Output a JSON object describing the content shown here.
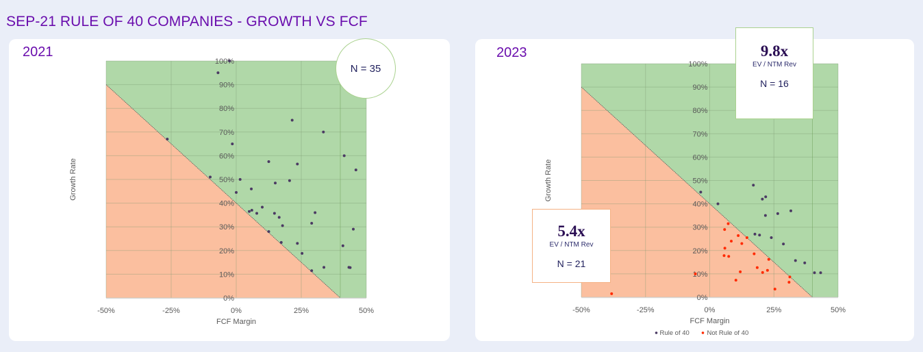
{
  "page_title": "SEP-21 RULE OF 40 COMPANIES - GROWTH VS FCF",
  "colors": {
    "title": "#6a0dad",
    "rule40_region": "#b0d8a8",
    "not_rule40_region": "#fbbf9f",
    "rule40_point": "#4b3a63",
    "not_rule40_point": "#ff2a00"
  },
  "chart_data": [
    {
      "type": "scatter",
      "title": "2021",
      "xlabel": "FCF Margin",
      "ylabel": "Growth Rate",
      "xlim": [
        -50,
        50
      ],
      "ylim": [
        0,
        100
      ],
      "x_ticks": [
        "-50%",
        "-25%",
        "0%",
        "25%",
        "50%"
      ],
      "x_tick_values": [
        -50,
        -25,
        0,
        25,
        50
      ],
      "y_ticks": [
        "0%",
        "10%",
        "20%",
        "30%",
        "40%",
        "50%",
        "60%",
        "70%",
        "80%",
        "90%",
        "100%"
      ],
      "y_tick_values": [
        0,
        10,
        20,
        30,
        40,
        50,
        60,
        70,
        80,
        90,
        100
      ],
      "grid": true,
      "regions": [
        {
          "name": "Rule of 40",
          "rule": "growth + fcf >= 40"
        },
        {
          "name": "Not Rule of 40",
          "rule": "growth + fcf < 40"
        }
      ],
      "annotation": "N = 35",
      "series": [
        {
          "name": "Rule of 40",
          "points": [
            [
              -2.6,
              100
            ],
            [
              -7,
              95
            ],
            [
              -26.5,
              67
            ],
            [
              -1.5,
              65
            ],
            [
              21.5,
              75
            ],
            [
              33.5,
              70
            ],
            [
              41.5,
              60
            ],
            [
              46,
              54
            ],
            [
              12.5,
              57.5
            ],
            [
              23.5,
              56.5
            ],
            [
              -10,
              51
            ],
            [
              1.5,
              50
            ],
            [
              15,
              48.5
            ],
            [
              20.5,
              49.5
            ],
            [
              0,
              44.5
            ],
            [
              5.8,
              46
            ],
            [
              5,
              36.5
            ],
            [
              6,
              37
            ],
            [
              7.9,
              35.7
            ],
            [
              10,
              38.3
            ],
            [
              14.7,
              35.7
            ],
            [
              16.5,
              34
            ],
            [
              17.8,
              30.5
            ],
            [
              12.5,
              28
            ],
            [
              17.3,
              23.4
            ],
            [
              30.3,
              36
            ],
            [
              29,
              31.5
            ],
            [
              45,
              29
            ],
            [
              41,
              22
            ],
            [
              43.8,
              12.8
            ],
            [
              43.3,
              12.9
            ],
            [
              25.3,
              18.8
            ],
            [
              23.5,
              23
            ],
            [
              33.7,
              12.9
            ],
            [
              29,
              11.5
            ]
          ]
        }
      ]
    },
    {
      "type": "scatter",
      "title": "2023",
      "xlabel": "FCF Margin",
      "ylabel": "Growth Rate",
      "xlim": [
        -50,
        50
      ],
      "ylim": [
        0,
        100
      ],
      "x_ticks": [
        "-50%",
        "-25%",
        "0%",
        "25%",
        "50%"
      ],
      "x_tick_values": [
        -50,
        -25,
        0,
        25,
        50
      ],
      "y_ticks": [
        "0%",
        "10%",
        "20%",
        "30%",
        "40%",
        "50%",
        "60%",
        "70%",
        "80%",
        "90%",
        "100%"
      ],
      "y_tick_values": [
        0,
        10,
        20,
        30,
        40,
        50,
        60,
        70,
        80,
        90,
        100
      ],
      "grid": true,
      "legend": {
        "position": "bottom",
        "entries": [
          "Rule of 40",
          "Not Rule of 40"
        ]
      },
      "series": [
        {
          "name": "Rule of 40",
          "points": [
            [
              -3.5,
              45
            ],
            [
              3.2,
              40
            ],
            [
              17,
              48
            ],
            [
              20.5,
              42
            ],
            [
              21.8,
              43
            ],
            [
              21.7,
              35
            ],
            [
              26.5,
              35.8
            ],
            [
              31.6,
              37
            ],
            [
              17.6,
              27
            ],
            [
              19.4,
              26.6
            ],
            [
              24,
              25.5
            ],
            [
              28.7,
              22.8
            ],
            [
              33.4,
              15.7
            ],
            [
              37,
              14.7
            ],
            [
              40.8,
              10.5
            ],
            [
              43.2,
              10.5
            ]
          ]
        },
        {
          "name": "Not Rule of 40",
          "points": [
            [
              -38.2,
              1.5
            ],
            [
              -5.6,
              10
            ],
            [
              7.2,
              31.5
            ],
            [
              5.8,
              29
            ],
            [
              5.9,
              21
            ],
            [
              5.6,
              17.8
            ],
            [
              7.4,
              17.5
            ],
            [
              8.4,
              24
            ],
            [
              11.1,
              26.4
            ],
            [
              12.5,
              23
            ],
            [
              14.5,
              25.5
            ],
            [
              17.3,
              18.6
            ],
            [
              18.5,
              12.7
            ],
            [
              20.6,
              10.6
            ],
            [
              22.5,
              11.5
            ],
            [
              23,
              16.2
            ],
            [
              11.9,
              10.9
            ],
            [
              10.2,
              7.3
            ],
            [
              25.4,
              3.5
            ],
            [
              31.2,
              8.7
            ],
            [
              30.9,
              6.4
            ]
          ]
        }
      ],
      "annotations": [
        {
          "region": "Rule of 40",
          "multiple": "9.8x",
          "metric": "EV / NTM Rev",
          "n": "N = 16"
        },
        {
          "region": "Not Rule of 40",
          "multiple": "5.4x",
          "metric": "EV / NTM Rev",
          "n": "N = 21"
        }
      ]
    }
  ]
}
